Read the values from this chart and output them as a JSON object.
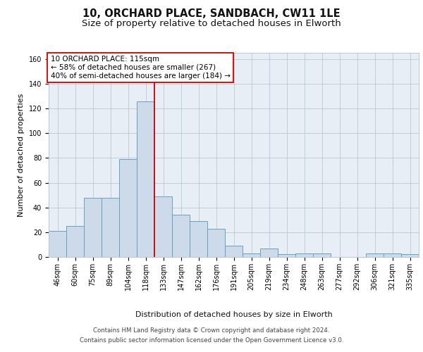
{
  "title": "10, ORCHARD PLACE, SANDBACH, CW11 1LE",
  "subtitle": "Size of property relative to detached houses in Elworth",
  "xlabel": "Distribution of detached houses by size in Elworth",
  "ylabel": "Number of detached properties",
  "categories": [
    "46sqm",
    "60sqm",
    "75sqm",
    "89sqm",
    "104sqm",
    "118sqm",
    "133sqm",
    "147sqm",
    "162sqm",
    "176sqm",
    "191sqm",
    "205sqm",
    "219sqm",
    "234sqm",
    "248sqm",
    "263sqm",
    "277sqm",
    "292sqm",
    "306sqm",
    "321sqm",
    "335sqm"
  ],
  "values": [
    21,
    25,
    48,
    48,
    79,
    126,
    49,
    34,
    29,
    23,
    9,
    3,
    7,
    2,
    3,
    3,
    0,
    0,
    3,
    3,
    2
  ],
  "bar_color": "#cddaea",
  "bar_edge_color": "#6a9fc0",
  "vline_x": 5.5,
  "vline_color": "#cc0000",
  "annotation_text": "10 ORCHARD PLACE: 115sqm\n← 58% of detached houses are smaller (267)\n40% of semi-detached houses are larger (184) →",
  "annotation_box_color": "#ffffff",
  "annotation_box_edge": "#cc0000",
  "ylim": [
    0,
    165
  ],
  "yticks": [
    0,
    20,
    40,
    60,
    80,
    100,
    120,
    140,
    160
  ],
  "grid_color": "#b8c8d8",
  "background_color": "#e8eef6",
  "footer": "Contains HM Land Registry data © Crown copyright and database right 2024.\nContains public sector information licensed under the Open Government Licence v3.0.",
  "title_fontsize": 10.5,
  "subtitle_fontsize": 9.5,
  "axis_label_fontsize": 8,
  "tick_fontsize": 7,
  "annotation_fontsize": 7.5,
  "footer_fontsize": 6.2
}
